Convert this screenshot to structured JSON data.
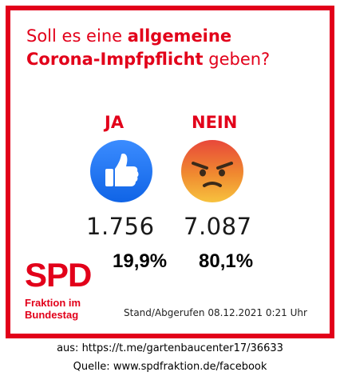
{
  "poll": {
    "question_line1_prefix": "Soll es eine ",
    "question_line1_bold": "allgemeine",
    "question_line2_bold": "Corona-Impfpflicht",
    "question_line2_suffix": " geben?",
    "options": [
      {
        "label": "JA",
        "reaction": "like-icon",
        "count": "1.756",
        "percent": "19,9%"
      },
      {
        "label": "NEIN",
        "reaction": "angry-face-icon",
        "count": "7.087",
        "percent": "80,1%"
      }
    ],
    "timestamp": "Stand/Abgerufen 08.12.2021 0:21 Uhr"
  },
  "logo": {
    "main": "SPD",
    "sub": "Fraktion im\nBundestag"
  },
  "caption": {
    "line1": "aus: https://t.me/gartenbaucenter17/36633",
    "line2": "Quelle: www.spdfraktion.de/facebook"
  },
  "colors": {
    "brand_red": "#e2001a",
    "like_blue": "#1877f2",
    "angry_orange": "#f0a02c"
  }
}
